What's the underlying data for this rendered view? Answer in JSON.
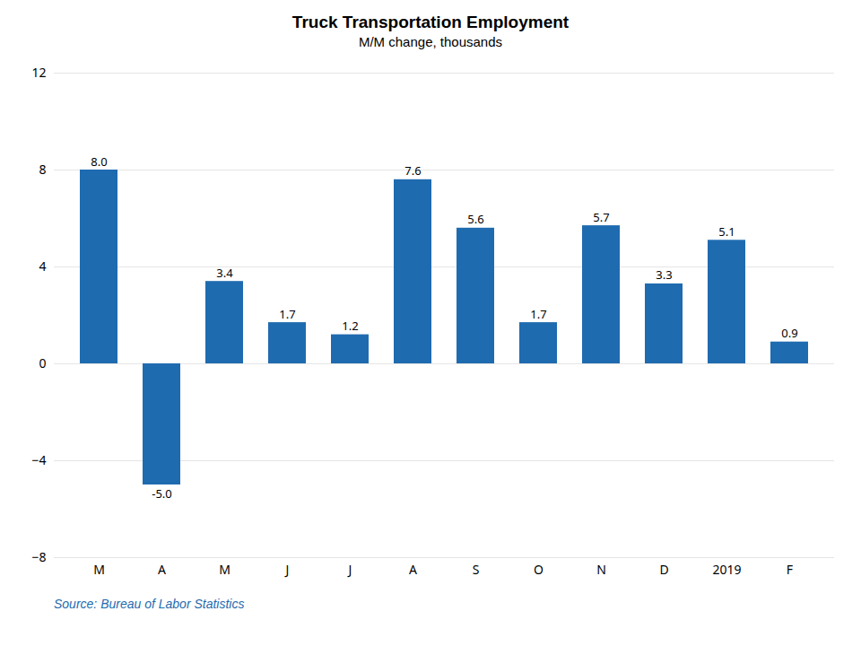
{
  "chart_data": {
    "type": "bar",
    "title": "Truck Transportation Employment",
    "subtitle": "M/M change, thousands",
    "source": "Source: Bureau of Labor Statistics",
    "categories": [
      "M",
      "A",
      "M",
      "J",
      "J",
      "A",
      "S",
      "O",
      "N",
      "D",
      "2019",
      "F"
    ],
    "values": [
      8.0,
      -5.0,
      3.4,
      1.7,
      1.2,
      7.6,
      5.6,
      1.7,
      5.7,
      3.3,
      5.1,
      0.9
    ],
    "value_labels": [
      "8.0",
      "-5.0",
      "3.4",
      "1.7",
      "1.2",
      "7.6",
      "5.6",
      "1.7",
      "5.7",
      "3.3",
      "5.1",
      "0.9"
    ],
    "color": "#1F6BB0",
    "ylim": [
      -8,
      12
    ],
    "yticks": [
      -8,
      -4,
      0,
      4,
      8,
      12
    ],
    "grid": true,
    "data_labels": true
  }
}
